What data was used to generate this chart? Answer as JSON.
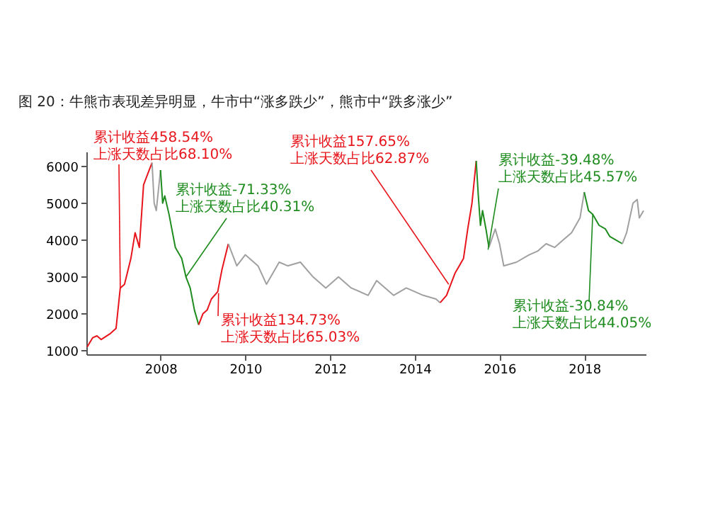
{
  "chart_data": {
    "type": "line",
    "title": "图 20：牛熊市表现差异明显，牛市中“涨多跌少”，熊市中“跌多涨少”",
    "xlim": [
      2006.25,
      2019.45
    ],
    "xticks": [
      2008,
      2010,
      2012,
      2014,
      2016,
      2018
    ],
    "ylim": [
      900,
      6400
    ],
    "yticks": [
      1000,
      2000,
      3000,
      4000,
      5000,
      6000
    ],
    "series": [
      {
        "color": "#e8141b",
        "x": [
          2006.27,
          2006.4,
          2006.5,
          2006.6,
          2006.8,
          2006.95,
          2007.05,
          2007.15,
          2007.3,
          2007.4,
          2007.5,
          2007.6,
          2007.7,
          2007.8
        ],
        "values": [
          1100,
          1350,
          1400,
          1300,
          1450,
          1600,
          2700,
          2800,
          3500,
          4200,
          3800,
          5500,
          5800,
          6100
        ]
      },
      {
        "color": "#a0a0a0",
        "x": [
          2007.8,
          2007.85,
          2007.9,
          2008.0
        ],
        "values": [
          6100,
          5000,
          4800,
          5900
        ]
      },
      {
        "color": "#1e8c1e",
        "x": [
          2008.0,
          2008.05,
          2008.1,
          2008.2,
          2008.35,
          2008.5,
          2008.6,
          2008.7,
          2008.8,
          2008.9
        ],
        "values": [
          5900,
          5000,
          5200,
          4700,
          3800,
          3500,
          3000,
          2700,
          2100,
          1700
        ]
      },
      {
        "color": "#e8141b",
        "x": [
          2008.9,
          2009.0,
          2009.1,
          2009.2,
          2009.35,
          2009.45,
          2009.6
        ],
        "values": [
          1700,
          2000,
          2100,
          2400,
          2600,
          3200,
          3900
        ]
      },
      {
        "color": "#a0a0a0",
        "x": [
          2009.6,
          2009.8,
          2010.0,
          2010.3,
          2010.5,
          2010.8,
          2011.0,
          2011.3,
          2011.6,
          2011.9,
          2012.2,
          2012.5,
          2012.9,
          2013.1,
          2013.5,
          2013.8,
          2014.2,
          2014.5,
          2014.6
        ],
        "values": [
          3900,
          3300,
          3600,
          3300,
          2800,
          3400,
          3300,
          3400,
          3000,
          2700,
          3000,
          2700,
          2500,
          2900,
          2500,
          2700,
          2500,
          2400,
          2300
        ]
      },
      {
        "color": "#e8141b",
        "x": [
          2014.6,
          2014.75,
          2014.85,
          2014.95,
          2015.05,
          2015.15,
          2015.25,
          2015.35,
          2015.45
        ],
        "values": [
          2300,
          2500,
          2800,
          3100,
          3300,
          3500,
          4300,
          5000,
          6150
        ]
      },
      {
        "color": "#1e8c1e",
        "x": [
          2015.45,
          2015.5,
          2015.55,
          2015.6,
          2015.68,
          2015.75
        ],
        "values": [
          6150,
          5200,
          4400,
          4800,
          4300,
          3800
        ]
      },
      {
        "color": "#a0a0a0",
        "x": [
          2015.75,
          2015.9,
          2016.0,
          2016.1,
          2016.4,
          2016.7,
          2016.9,
          2017.1,
          2017.3,
          2017.5,
          2017.7,
          2017.9,
          2018.0
        ],
        "values": [
          3800,
          4300,
          3900,
          3300,
          3400,
          3600,
          3700,
          3900,
          3800,
          4000,
          4200,
          4600,
          5300
        ]
      },
      {
        "color": "#1e8c1e",
        "x": [
          2018.0,
          2018.1,
          2018.2,
          2018.35,
          2018.5,
          2018.6,
          2018.75,
          2018.9
        ],
        "values": [
          5300,
          4800,
          4700,
          4400,
          4300,
          4100,
          4000,
          3900
        ]
      },
      {
        "color": "#a0a0a0",
        "x": [
          2018.9,
          2019.0,
          2019.15,
          2019.25,
          2019.3,
          2019.4
        ],
        "values": [
          3900,
          4200,
          5000,
          5100,
          4600,
          4800
        ]
      }
    ],
    "annotations": [
      {
        "text": "累计收益458.54%\n上涨天数占比68.10%",
        "x": 2007.05,
        "y": 2700
      },
      {
        "text": "累计收益-71.33%\n上涨天数占比40.31%",
        "x": 2008.6,
        "y": 3000
      },
      {
        "text": "累计收益134.73%\n上涨天数占比65.03%",
        "x": 2009.37,
        "y": 2560
      },
      {
        "text": "累计收益157.65%\n上涨天数占比62.87%",
        "x": 2014.8,
        "y": 2800
      },
      {
        "text": "累计收益-39.48%\n上涨天数占比45.57%",
        "x": 2015.73,
        "y": 3740
      },
      {
        "text": "累计收益-30.84%\n上涨天数占比44.05%",
        "x": 2018.2,
        "y": 4700
      }
    ]
  }
}
